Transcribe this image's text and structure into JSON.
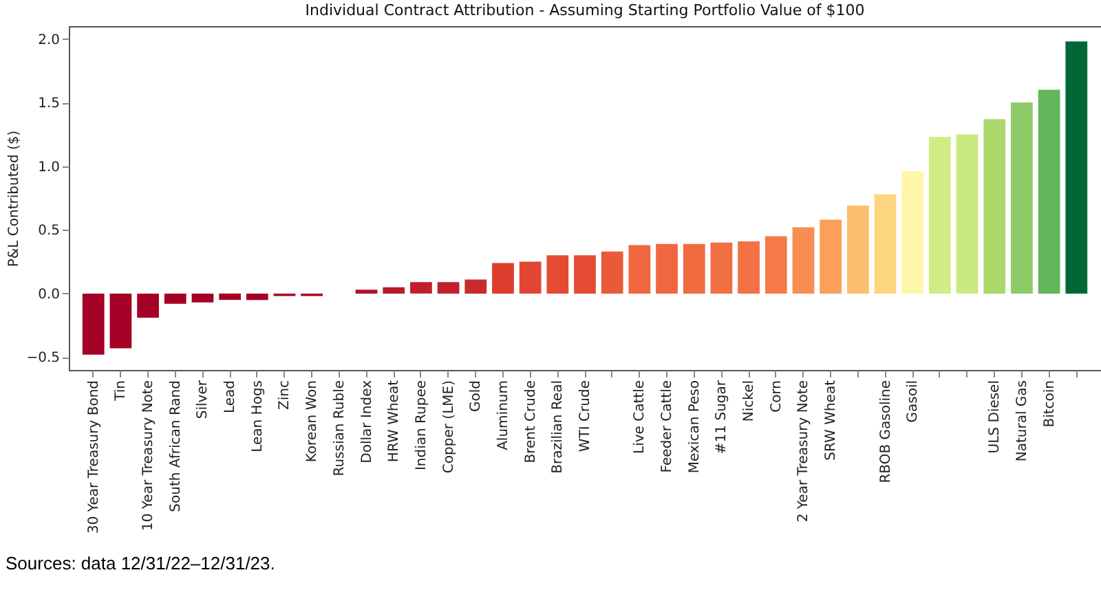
{
  "chart_data": {
    "type": "bar",
    "title": "Individual Contract Attribution - Assuming Starting Portfolio Value of $100",
    "ylabel": "P&L Contributed ($)",
    "categories": [
      "30 Year Treasury Bond",
      "Tin",
      "10 Year Treasury Note",
      "South African Rand",
      "Silver",
      "Lead",
      "Lean Hogs",
      "Zinc",
      "Korean Won",
      "Russian Ruble",
      "Dollar Index",
      "HRW Wheat",
      "Indian Rupee",
      "Copper (LME)",
      "Gold",
      "Aluminum",
      "Brent Crude",
      "Brazilian Real",
      "WTI Crude",
      null,
      "Live Cattle",
      "Feeder Cattle",
      "Mexican Peso",
      "#11 Sugar",
      "Nickel",
      "Corn",
      "2 Year Treasury Note",
      "SRW Wheat",
      null,
      "RBOB Gasoline",
      "Gasoil",
      null,
      null,
      "ULS Diesel",
      "Natural Gas",
      "Bitcoin",
      null
    ],
    "values": [
      -0.48,
      -0.43,
      -0.19,
      -0.08,
      -0.07,
      -0.05,
      -0.05,
      -0.02,
      -0.02,
      0,
      0.03,
      0.05,
      0.09,
      0.09,
      0.11,
      0.24,
      0.25,
      0.3,
      0.3,
      0.33,
      0.38,
      0.39,
      0.39,
      0.4,
      0.41,
      0.45,
      0.52,
      0.58,
      0.69,
      0.78,
      0.96,
      1.23,
      1.25,
      1.37,
      1.5,
      1.6,
      1.98
    ],
    "colors": [
      "#a50026",
      "#a50026",
      "#a50026",
      "#a50026",
      "#a50026",
      "#a50026",
      "#a50026",
      "#a50026",
      "#a50026",
      "#a50026",
      "#b0112a",
      "#b71a2b",
      "#c0202c",
      "#c0202c",
      "#c92a2d",
      "#dc3d2d",
      "#e04631",
      "#e34b33",
      "#e34b33",
      "#e95a38",
      "#f0673f",
      "#f0673f",
      "#f16b41",
      "#f26e43",
      "#f37145",
      "#f47a4a",
      "#f88e52",
      "#faa05b",
      "#fdbe6e",
      "#fed57f",
      "#fff5ab",
      "#d1ec85",
      "#cbe983",
      "#abd86a",
      "#8ccb65",
      "#62b75b",
      "#006837"
    ],
    "ylim": [
      -0.6,
      2.1
    ],
    "yticks": [
      {
        "value": -0.5,
        "label": "−0.5"
      },
      {
        "value": 0,
        "label": "0.0"
      },
      {
        "value": 0.5,
        "label": "0.5"
      },
      {
        "value": 1,
        "label": "1.0"
      },
      {
        "value": 1.5,
        "label": "1.5"
      },
      {
        "value": 2,
        "label": "2.0"
      }
    ],
    "annotations": [
      "Sources: data 12/31/22–12/31/23."
    ]
  }
}
